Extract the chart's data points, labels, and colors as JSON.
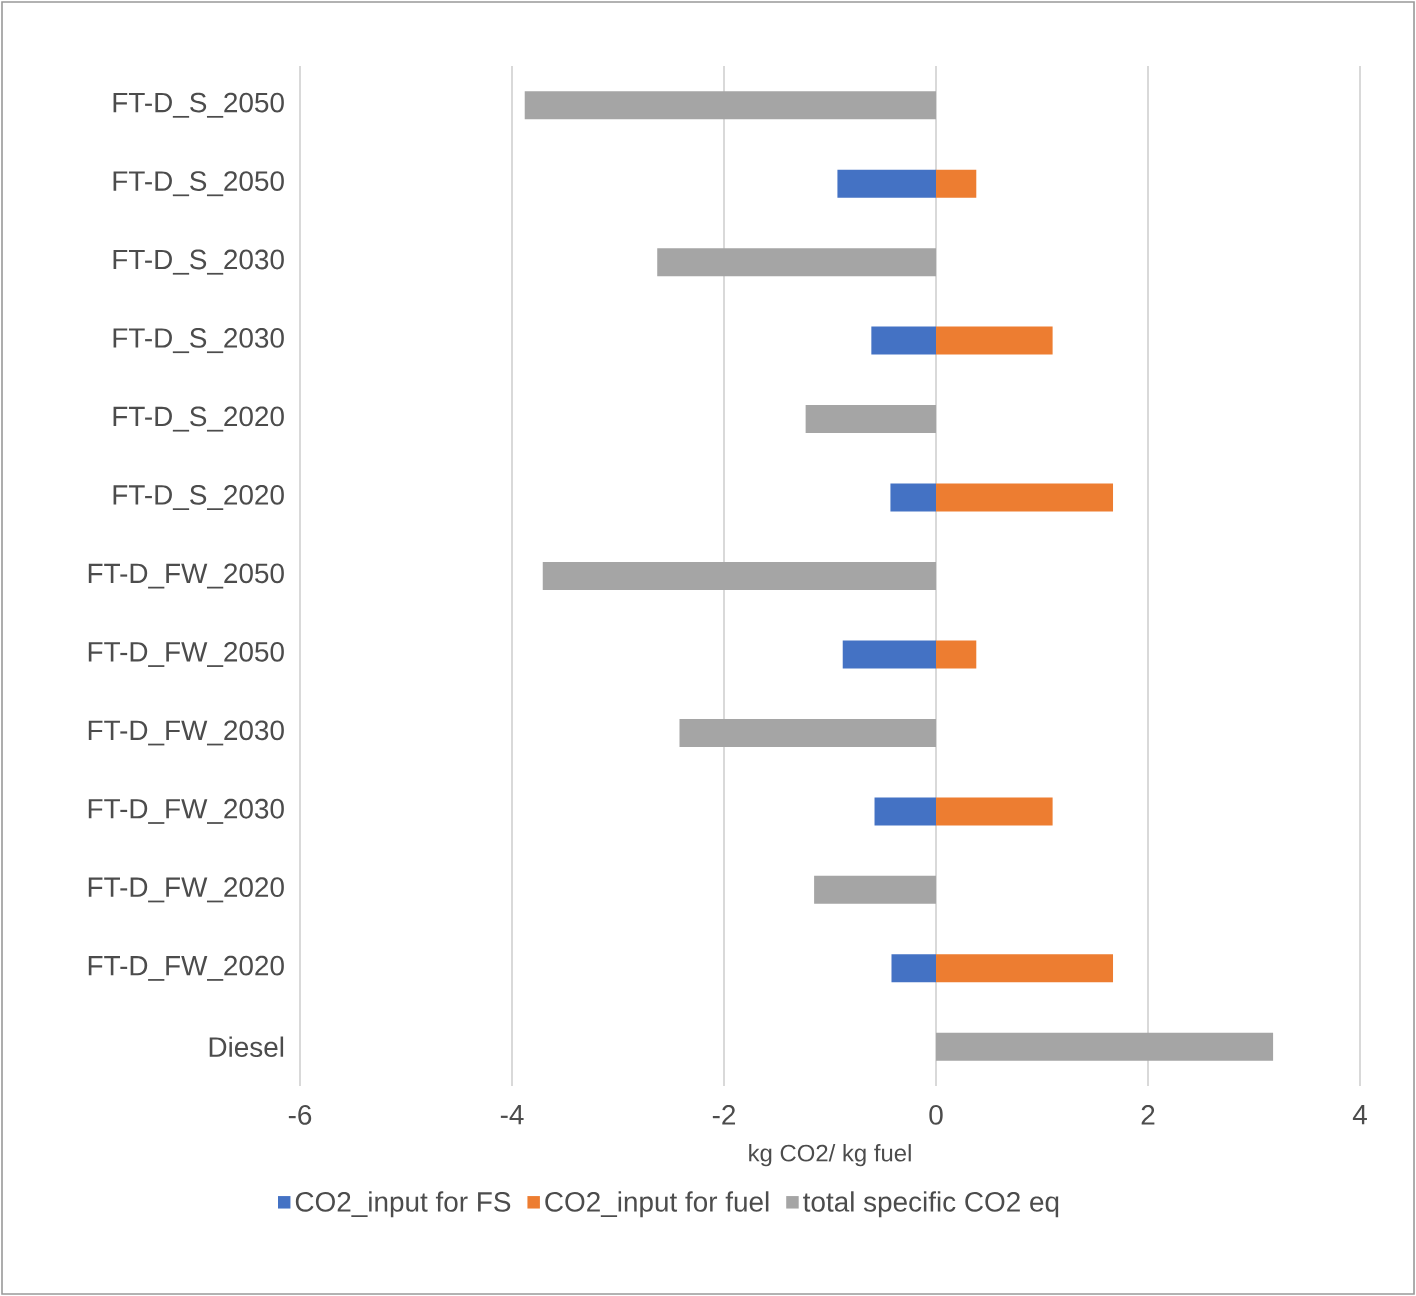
{
  "chart_data": {
    "type": "bar",
    "orientation": "horizontal",
    "stacked": true,
    "xlabel": "kg CO2/ kg fuel",
    "categories": [
      "FT-D_S_2050",
      "FT-D_S_2050",
      "FT-D_S_2030",
      "FT-D_S_2030",
      "FT-D_S_2020",
      "FT-D_S_2020",
      "FT-D_FW_2050",
      "FT-D_FW_2050",
      "FT-D_FW_2030",
      "FT-D_FW_2030",
      "FT-D_FW_2020",
      "FT-D_FW_2020",
      "Diesel"
    ],
    "series": [
      {
        "name": "CO2_input for FS",
        "color": "#4472c4",
        "values": [
          null,
          -0.93,
          null,
          -0.61,
          null,
          -0.43,
          null,
          -0.88,
          null,
          -0.58,
          null,
          -0.42,
          null
        ]
      },
      {
        "name": "CO2_input for fuel",
        "color": "#ed7d31",
        "values": [
          null,
          0.38,
          null,
          1.1,
          null,
          1.67,
          null,
          0.38,
          null,
          1.1,
          null,
          1.67,
          null
        ]
      },
      {
        "name": "total specific CO2 eq",
        "color": "#a5a5a5",
        "values": [
          -3.88,
          null,
          -2.63,
          null,
          -1.23,
          null,
          -3.71,
          null,
          -2.42,
          null,
          -1.15,
          null,
          3.18
        ]
      }
    ],
    "xlim": [
      -6,
      4
    ],
    "xticks": [
      -6,
      -4,
      -2,
      0,
      2,
      4
    ],
    "grid": "x",
    "legend": "bottom"
  }
}
